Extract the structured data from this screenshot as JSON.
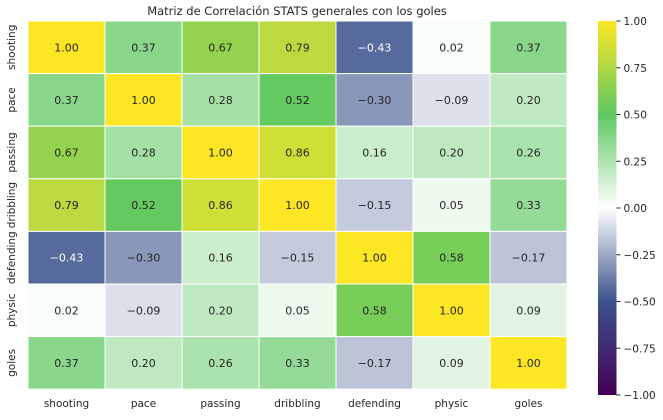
{
  "chart_data": {
    "type": "heatmap",
    "title": "Matriz de Correlación STATS generales con los goles",
    "xlabel": "",
    "ylabel": "",
    "x_categories": [
      "shooting",
      "pace",
      "passing",
      "dribbling",
      "defending",
      "physic",
      "goles"
    ],
    "y_categories": [
      "shooting",
      "pace",
      "passing",
      "dribbling",
      "defending",
      "physic",
      "goles"
    ],
    "values": [
      [
        1.0,
        0.37,
        0.67,
        0.79,
        -0.43,
        0.02,
        0.37
      ],
      [
        0.37,
        1.0,
        0.28,
        0.52,
        -0.3,
        -0.09,
        0.2
      ],
      [
        0.67,
        0.28,
        1.0,
        0.86,
        0.16,
        0.2,
        0.26
      ],
      [
        0.79,
        0.52,
        0.86,
        1.0,
        -0.15,
        0.05,
        0.33
      ],
      [
        -0.43,
        -0.3,
        0.16,
        -0.15,
        1.0,
        0.58,
        -0.17
      ],
      [
        0.02,
        -0.09,
        0.2,
        0.05,
        0.58,
        1.0,
        0.09
      ],
      [
        0.37,
        0.2,
        0.26,
        0.33,
        -0.17,
        0.09,
        1.0
      ]
    ],
    "value_range": [
      -1.0,
      1.0
    ],
    "colorbar": {
      "ticks": [
        1.0,
        0.75,
        0.5,
        0.25,
        0.0,
        -0.25,
        -0.5,
        -0.75,
        -1.0
      ],
      "tick_labels": [
        "1.00",
        "0.75",
        "0.50",
        "0.25",
        "0.00",
        "−0.25",
        "−0.50",
        "−0.75",
        "−1.00"
      ],
      "colormap": {
        "stops": [
          -1.0,
          -0.5,
          0.0,
          0.5,
          1.0
        ],
        "colors": [
          "#440154",
          "#3b528b",
          "#ffffff",
          "#5ec962",
          "#fde725"
        ]
      }
    }
  }
}
